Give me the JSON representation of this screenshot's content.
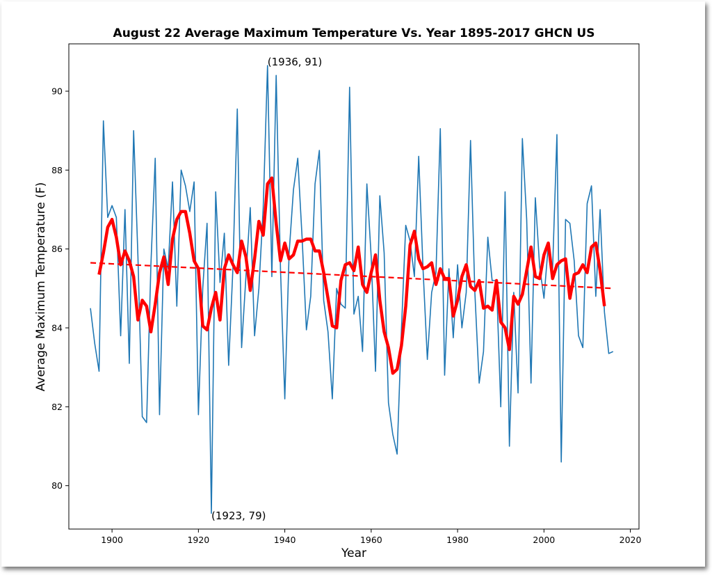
{
  "chart_data": {
    "type": "line",
    "title": "August 22 Average Maximum Temperature Vs. Year 1895-2017 GHCN US",
    "xlabel": "Year",
    "ylabel": "Average Maximum Temperature (F)",
    "xlim": [
      1890,
      2022
    ],
    "ylim": [
      78.9,
      91.2
    ],
    "xticks": [
      1900,
      1920,
      1940,
      1960,
      1980,
      2000,
      2020
    ],
    "yticks": [
      80,
      82,
      84,
      86,
      88,
      90
    ],
    "grid": false,
    "annotations": [
      {
        "text": "(1936, 91)",
        "x": 1936,
        "y": 90.65
      },
      {
        "text": "(1923, 79)",
        "x": 1923,
        "y": 79.15
      }
    ],
    "series": [
      {
        "style": "line",
        "color": "#1f77b4",
        "x": [
          1895,
          1896,
          1897,
          1898,
          1899,
          1900,
          1901,
          1902,
          1903,
          1904,
          1905,
          1906,
          1907,
          1908,
          1909,
          1910,
          1911,
          1912,
          1913,
          1914,
          1915,
          1916,
          1917,
          1918,
          1919,
          1920,
          1921,
          1922,
          1923,
          1924,
          1925,
          1926,
          1927,
          1928,
          1929,
          1930,
          1931,
          1932,
          1933,
          1934,
          1935,
          1936,
          1937,
          1938,
          1939,
          1940,
          1941,
          1942,
          1943,
          1944,
          1945,
          1946,
          1947,
          1948,
          1949,
          1950,
          1951,
          1952,
          1953,
          1954,
          1955,
          1956,
          1957,
          1958,
          1959,
          1960,
          1961,
          1962,
          1963,
          1964,
          1965,
          1966,
          1967,
          1968,
          1969,
          1970,
          1971,
          1972,
          1973,
          1974,
          1975,
          1976,
          1977,
          1978,
          1979,
          1980,
          1981,
          1982,
          1983,
          1984,
          1985,
          1986,
          1987,
          1988,
          1989,
          1990,
          1991,
          1992,
          1993,
          1994,
          1995,
          1996,
          1997,
          1998,
          1999,
          2000,
          2001,
          2002,
          2003,
          2004,
          2005,
          2006,
          2007,
          2008,
          2009,
          2010,
          2011,
          2012,
          2013,
          2014,
          2015,
          2016
        ],
        "y": [
          84.5,
          83.6,
          82.9,
          89.25,
          86.8,
          87.1,
          86.8,
          83.8,
          87.0,
          83.1,
          89.0,
          85.8,
          81.75,
          81.6,
          85.6,
          88.3,
          81.8,
          86.0,
          85.5,
          87.7,
          84.55,
          88.0,
          87.6,
          86.95,
          87.7,
          81.8,
          85.0,
          86.65,
          79.3,
          87.45,
          85.15,
          86.4,
          83.05,
          85.55,
          89.55,
          83.5,
          85.3,
          87.05,
          83.8,
          85.0,
          87.05,
          90.65,
          85.3,
          90.4,
          85.5,
          82.2,
          85.9,
          87.5,
          88.3,
          86.3,
          83.95,
          84.8,
          87.65,
          88.5,
          84.7,
          83.9,
          82.2,
          85.0,
          84.6,
          84.5,
          90.1,
          84.35,
          84.8,
          83.4,
          87.65,
          85.8,
          82.9,
          87.35,
          85.9,
          82.1,
          81.3,
          80.8,
          83.95,
          86.6,
          86.2,
          85.3,
          88.35,
          85.5,
          83.2,
          84.9,
          85.4,
          89.05,
          82.8,
          85.5,
          83.75,
          85.6,
          84.0,
          84.9,
          88.75,
          84.9,
          82.6,
          83.4,
          86.3,
          85.2,
          85.2,
          82.0,
          87.45,
          81.0,
          84.9,
          82.35,
          88.8,
          86.75,
          82.6,
          87.3,
          85.55,
          84.75,
          86.1,
          85.5,
          88.9,
          80.6,
          86.75,
          86.65,
          85.7,
          83.8,
          83.5,
          87.15,
          87.6,
          84.8,
          87.0,
          84.4,
          83.35,
          83.4
        ]
      },
      {
        "style": "moving-average",
        "color": "#ff0000",
        "x": [
          1897,
          1898,
          1899,
          1900,
          1901,
          1902,
          1903,
          1904,
          1905,
          1906,
          1907,
          1908,
          1909,
          1910,
          1911,
          1912,
          1913,
          1914,
          1915,
          1916,
          1917,
          1918,
          1919,
          1920,
          1921,
          1922,
          1923,
          1924,
          1925,
          1926,
          1927,
          1928,
          1929,
          1930,
          1931,
          1932,
          1933,
          1934,
          1935,
          1936,
          1937,
          1938,
          1939,
          1940,
          1941,
          1942,
          1943,
          1944,
          1945,
          1946,
          1947,
          1948,
          1949,
          1950,
          1951,
          1952,
          1953,
          1954,
          1955,
          1956,
          1957,
          1958,
          1959,
          1960,
          1961,
          1962,
          1963,
          1964,
          1965,
          1966,
          1967,
          1968,
          1969,
          1970,
          1971,
          1972,
          1973,
          1974,
          1975,
          1976,
          1977,
          1978,
          1979,
          1980,
          1981,
          1982,
          1983,
          1984,
          1985,
          1986,
          1987,
          1988,
          1989,
          1990,
          1991,
          1992,
          1993,
          1994,
          1995,
          1996,
          1997,
          1998,
          1999,
          2000,
          2001,
          2002,
          2003,
          2004,
          2005,
          2006,
          2007,
          2008,
          2009,
          2010,
          2011,
          2012,
          2013,
          2014
        ],
        "y": [
          85.35,
          85.9,
          86.55,
          86.75,
          86.3,
          85.6,
          85.95,
          85.7,
          85.3,
          84.2,
          84.7,
          84.55,
          83.9,
          84.6,
          85.4,
          85.8,
          85.1,
          86.25,
          86.75,
          86.95,
          86.95,
          86.4,
          85.7,
          85.5,
          84.05,
          83.95,
          84.5,
          84.9,
          84.2,
          85.5,
          85.85,
          85.6,
          85.4,
          86.2,
          85.8,
          84.95,
          85.75,
          86.7,
          86.35,
          87.65,
          87.8,
          86.65,
          85.7,
          86.15,
          85.75,
          85.85,
          86.2,
          86.2,
          86.25,
          86.25,
          85.95,
          85.95,
          85.4,
          84.75,
          84.05,
          84.0,
          85.2,
          85.6,
          85.65,
          85.45,
          86.05,
          85.1,
          84.9,
          85.4,
          85.85,
          84.7,
          83.9,
          83.5,
          82.85,
          82.95,
          83.55,
          84.55,
          86.1,
          86.45,
          85.75,
          85.5,
          85.55,
          85.65,
          85.1,
          85.5,
          85.25,
          85.25,
          84.3,
          84.7,
          85.3,
          85.6,
          85.05,
          84.95,
          85.2,
          84.5,
          84.55,
          84.45,
          85.2,
          84.15,
          84.0,
          83.45,
          84.8,
          84.6,
          84.85,
          85.45,
          86.05,
          85.3,
          85.25,
          85.85,
          86.15,
          85.25,
          85.6,
          85.7,
          85.75,
          84.75,
          85.35,
          85.4,
          85.6,
          85.4,
          86.05,
          86.15,
          85.45,
          84.55
        ]
      },
      {
        "style": "trend",
        "color": "#ff0000",
        "x": [
          1895,
          2016
        ],
        "y": [
          85.65,
          85.0
        ]
      }
    ]
  }
}
